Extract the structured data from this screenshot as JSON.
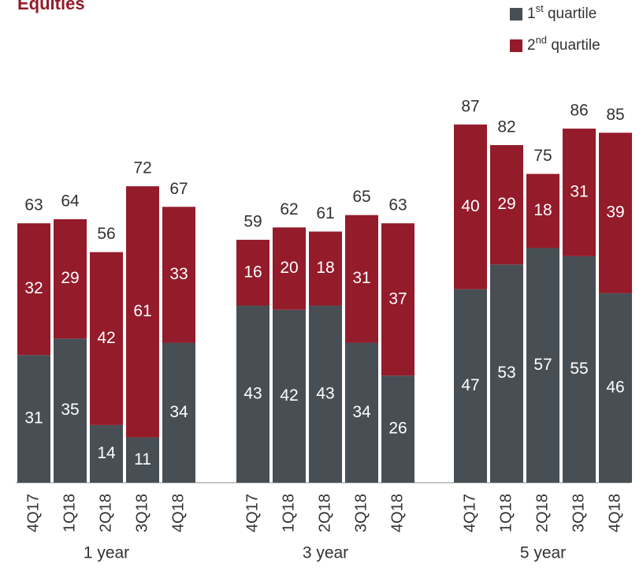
{
  "chart_data": {
    "type": "stacked_bar",
    "title": "Equities",
    "categories": [
      "4Q17",
      "1Q18",
      "2Q18",
      "3Q18",
      "4Q18",
      "4Q17",
      "1Q18",
      "2Q18",
      "3Q18",
      "4Q18",
      "4Q17",
      "1Q18",
      "2Q18",
      "3Q18",
      "4Q18"
    ],
    "groups": [
      "1 year",
      "3 year",
      "5 year"
    ],
    "series": [
      {
        "name": "1st quartile",
        "color": "#474f55",
        "values": [
          31,
          35,
          14,
          11,
          34,
          43,
          42,
          43,
          34,
          26,
          47,
          53,
          57,
          55,
          46
        ]
      },
      {
        "name": "2nd quartile",
        "color": "#941b2a",
        "values": [
          32,
          29,
          42,
          61,
          33,
          16,
          20,
          18,
          31,
          37,
          40,
          29,
          18,
          31,
          39
        ]
      }
    ],
    "totals": [
      63,
      64,
      56,
      72,
      67,
      59,
      62,
      61,
      65,
      63,
      87,
      82,
      75,
      86,
      85
    ]
  }
}
